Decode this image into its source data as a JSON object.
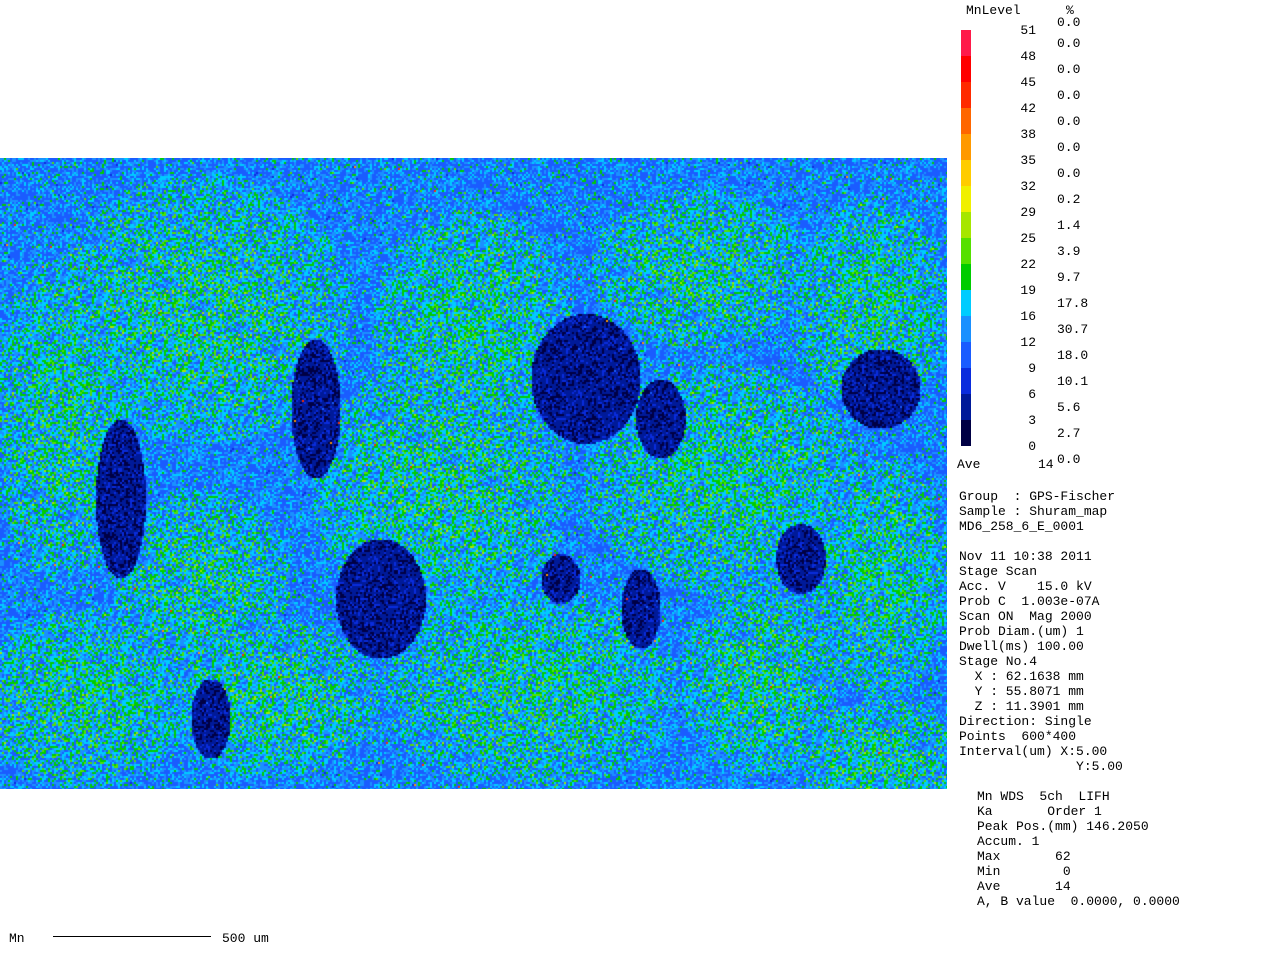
{
  "legend": {
    "header_level": "MnLevel",
    "header_percent": "%",
    "top_percent": "0.0",
    "levels": [
      "51",
      "48",
      "45",
      "42",
      "38",
      "35",
      "32",
      "29",
      "25",
      "22",
      "19",
      "16",
      "12",
      "9",
      "6",
      "3",
      "0"
    ],
    "percents": [
      "0.0",
      "0.0",
      "0.0",
      "0.0",
      "0.0",
      "0.0",
      "0.2",
      "1.4",
      "3.9",
      "9.7",
      "17.8",
      "30.7",
      "18.0",
      "10.1",
      "5.6",
      "2.7",
      "0.0"
    ],
    "colors": [
      "#ff1a4a",
      "#ff0000",
      "#ff2a00",
      "#ff6600",
      "#ff9900",
      "#ffcc00",
      "#f0f000",
      "#a6e600",
      "#55e000",
      "#00cc00",
      "#00ccff",
      "#1a90ff",
      "#1a5cff",
      "#0a2cdd",
      "#001a99",
      "#000044"
    ],
    "ave_label": "Ave",
    "ave_value": "14"
  },
  "info": {
    "lines": [
      "Group  : GPS-Fischer",
      "Sample : Shuram_map",
      "MD6_258_6_E_0001",
      "",
      "Nov 11 10:38 2011",
      "Stage Scan",
      "Acc. V    15.0 kV",
      "Prob C  1.003e-07A",
      "Scan ON  Mag 2000",
      "Prob Diam.(um) 1",
      "Dwell(ms) 100.00",
      "Stage No.4",
      "  X : 62.1638 mm",
      "  Y : 55.8071 mm",
      "  Z : 11.3901 mm",
      "Direction: Single",
      "Points  600*400",
      "Interval(um) X:5.00",
      "               Y:5.00"
    ]
  },
  "wds": {
    "lines": [
      "Mn WDS  5ch  LIFH",
      "Ka       Order 1",
      "Peak Pos.(mm) 146.2050",
      "Accum. 1",
      "Max       62",
      "Min        0",
      "Ave       14",
      "A, B value  0.0000, 0.0000"
    ]
  },
  "footer": {
    "element": "Mn",
    "scale_label": "500 um"
  }
}
